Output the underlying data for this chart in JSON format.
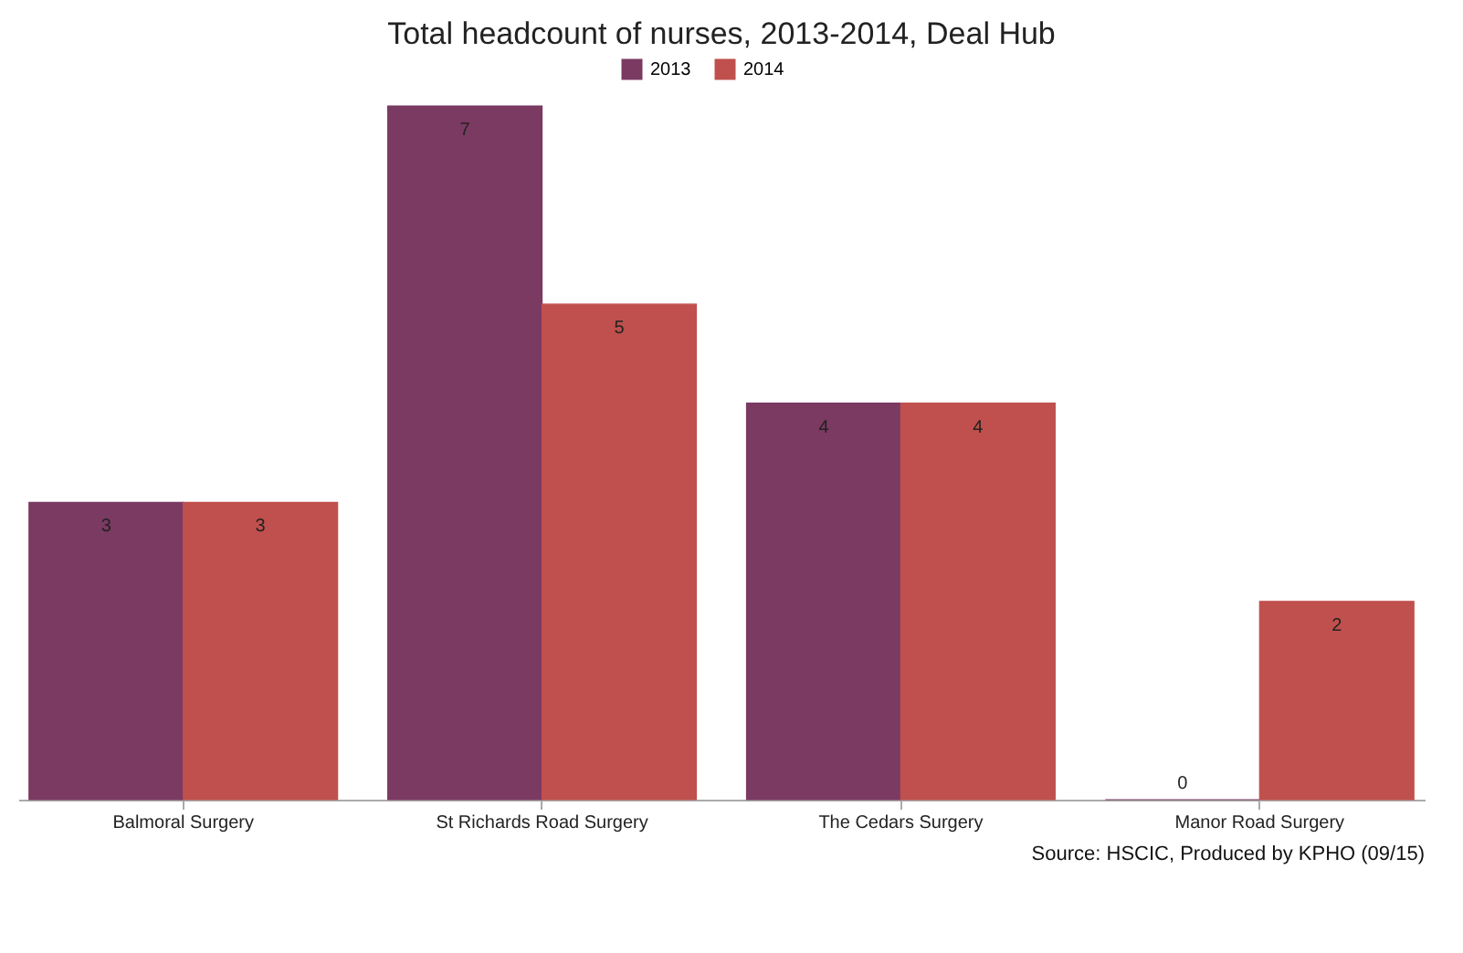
{
  "chart_data": {
    "type": "bar",
    "title": "Total headcount of nurses, 2013-2014, Deal Hub",
    "categories": [
      "Balmoral Surgery",
      "St Richards Road Surgery",
      "The Cedars Surgery",
      "Manor Road Surgery"
    ],
    "series": [
      {
        "name": "2013",
        "color": "#7b3a62",
        "values": [
          3,
          7,
          4,
          0
        ]
      },
      {
        "name": "2014",
        "color": "#c0504d",
        "values": [
          3,
          5,
          4,
          2
        ]
      }
    ],
    "data_labels": true,
    "legend": "top",
    "grid": false,
    "annotations": [
      "Source: HSCIC, Produced by KPHO (09/15)"
    ]
  }
}
